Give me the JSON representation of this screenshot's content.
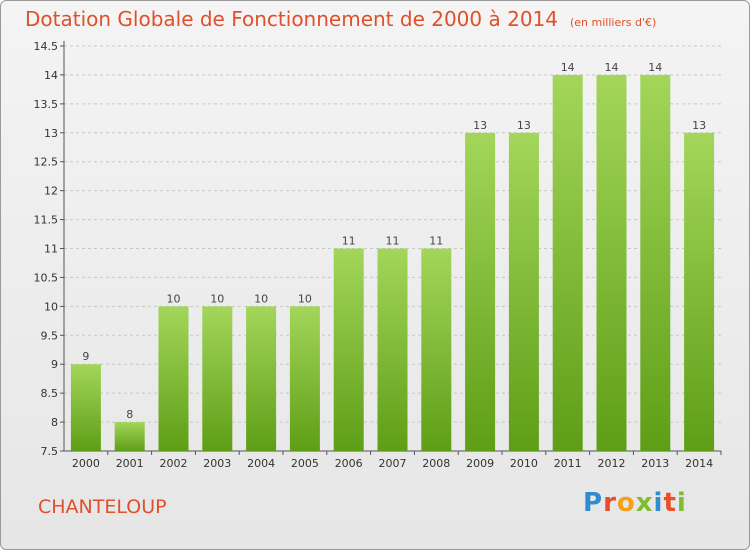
{
  "header": {
    "title": "Dotation Globale de Fonctionnement de 2000 à 2014",
    "unit": "(en milliers d'€)"
  },
  "footer": {
    "place": "CHANTELOUP",
    "logo_letters": [
      "P",
      "r",
      "o",
      "x",
      "i",
      "t",
      "i"
    ]
  },
  "colors": {
    "bar_top": "#a3d65a",
    "bar_bottom": "#5e9e16",
    "title": "#e0502a",
    "grid": "#c8c8c8"
  },
  "chart_data": {
    "type": "bar",
    "categories": [
      "2000",
      "2001",
      "2002",
      "2003",
      "2004",
      "2005",
      "2006",
      "2007",
      "2008",
      "2009",
      "2010",
      "2011",
      "2012",
      "2013",
      "2014"
    ],
    "values": [
      9,
      8,
      10,
      10,
      10,
      10,
      11,
      11,
      11,
      13,
      13,
      14,
      14,
      14,
      13
    ],
    "data_labels": [
      "9",
      "8",
      "10",
      "10",
      "10",
      "10",
      "11",
      "11",
      "11",
      "13",
      "13",
      "14",
      "14",
      "14",
      "13"
    ],
    "yticks": [
      7.5,
      8,
      8.5,
      9,
      9.5,
      10,
      10.5,
      11,
      11.5,
      12,
      12.5,
      13,
      13.5,
      14,
      14.5
    ],
    "ytick_labels": [
      "7.5",
      "8",
      "8.5",
      "9",
      "9.5",
      "10",
      "10.5",
      "11",
      "11.5",
      "12",
      "12.5",
      "13",
      "13.5",
      "14",
      "14.5"
    ],
    "ylim": [
      7.5,
      14.5
    ],
    "grid": true,
    "title": "Dotation Globale de Fonctionnement de 2000 à 2014",
    "xlabel": "",
    "ylabel": ""
  }
}
